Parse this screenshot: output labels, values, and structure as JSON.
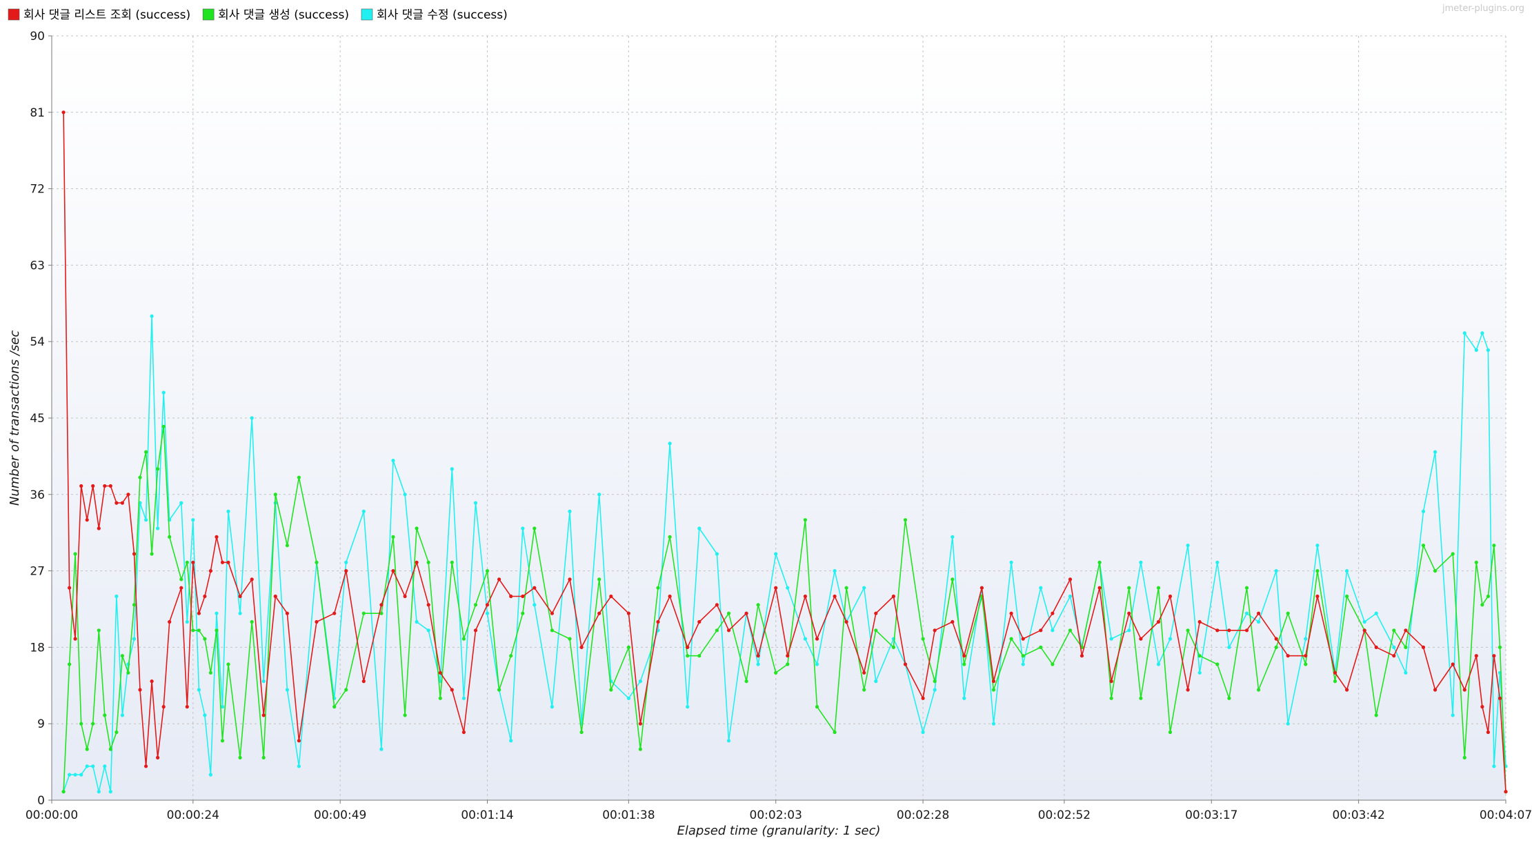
{
  "watermark": "jmeter-plugins.org",
  "colors": {
    "plot_bg_top": "#ffffff",
    "plot_bg_bottom": "#e6ebf5",
    "grid": "#c2c2c2",
    "axis": "#7a7a7a"
  },
  "chart_data": {
    "type": "line",
    "xlabel": "Elapsed time (granularity: 1 sec)",
    "ylabel": "Number of transactions /sec",
    "xlim": [
      0,
      247
    ],
    "ylim": [
      0,
      90
    ],
    "x_ticks": [
      {
        "value": 0,
        "label": "00:00:00"
      },
      {
        "value": 24,
        "label": "00:00:24"
      },
      {
        "value": 49,
        "label": "00:00:49"
      },
      {
        "value": 74,
        "label": "00:01:14"
      },
      {
        "value": 98,
        "label": "00:01:38"
      },
      {
        "value": 123,
        "label": "00:02:03"
      },
      {
        "value": 148,
        "label": "00:02:28"
      },
      {
        "value": 172,
        "label": "00:02:52"
      },
      {
        "value": 197,
        "label": "00:03:17"
      },
      {
        "value": 222,
        "label": "00:03:42"
      },
      {
        "value": 247,
        "label": "00:04:07"
      }
    ],
    "y_ticks": [
      0,
      9,
      18,
      27,
      36,
      45,
      54,
      63,
      72,
      81,
      90
    ],
    "legend_position": "top-left",
    "grid": true,
    "series": [
      {
        "name": "회사 댓글 리스트 조회 (success)",
        "color": "#e21a1a",
        "x": [
          2,
          3,
          4,
          5,
          6,
          7,
          8,
          9,
          10,
          11,
          12,
          13,
          14,
          15,
          16,
          17,
          18,
          19,
          20,
          22,
          23,
          24,
          25,
          26,
          27,
          28,
          29,
          30,
          32,
          34,
          36,
          38,
          40,
          42,
          45,
          48,
          50,
          53,
          56,
          58,
          60,
          62,
          64,
          66,
          68,
          70,
          72,
          74,
          76,
          78,
          80,
          82,
          85,
          88,
          90,
          93,
          95,
          98,
          100,
          103,
          105,
          108,
          110,
          113,
          115,
          118,
          120,
          123,
          125,
          128,
          130,
          133,
          135,
          138,
          140,
          143,
          145,
          148,
          150,
          153,
          155,
          158,
          160,
          163,
          165,
          168,
          170,
          173,
          175,
          178,
          180,
          183,
          185,
          188,
          190,
          193,
          195,
          198,
          200,
          203,
          205,
          208,
          210,
          213,
          215,
          218,
          220,
          223,
          225,
          228,
          230,
          233,
          235,
          238,
          240,
          242,
          243,
          244,
          245,
          246,
          247
        ],
        "values": [
          81,
          25,
          19,
          37,
          33,
          37,
          32,
          37,
          37,
          35,
          35,
          36,
          29,
          13,
          4,
          14,
          5,
          11,
          21,
          25,
          11,
          28,
          22,
          24,
          27,
          31,
          28,
          28,
          24,
          26,
          10,
          24,
          22,
          7,
          21,
          22,
          27,
          14,
          23,
          27,
          24,
          28,
          23,
          15,
          13,
          8,
          20,
          23,
          26,
          24,
          24,
          25,
          22,
          26,
          18,
          22,
          24,
          22,
          9,
          21,
          24,
          18,
          21,
          23,
          20,
          22,
          17,
          25,
          17,
          24,
          19,
          24,
          21,
          15,
          22,
          24,
          16,
          12,
          20,
          21,
          17,
          25,
          14,
          22,
          19,
          20,
          22,
          26,
          17,
          25,
          14,
          22,
          19,
          21,
          24,
          13,
          21,
          20,
          20,
          20,
          22,
          19,
          17,
          17,
          24,
          15,
          13,
          20,
          18,
          17,
          20,
          18,
          13,
          16,
          13,
          17,
          11,
          8,
          17,
          12,
          1
        ]
      },
      {
        "name": "회사 댓글 생성 (success)",
        "color": "#22e322",
        "x": [
          2,
          3,
          4,
          5,
          6,
          7,
          8,
          9,
          10,
          11,
          12,
          13,
          14,
          15,
          16,
          17,
          18,
          19,
          20,
          22,
          23,
          24,
          25,
          26,
          27,
          28,
          29,
          30,
          32,
          34,
          36,
          38,
          40,
          42,
          45,
          48,
          50,
          53,
          56,
          58,
          60,
          62,
          64,
          66,
          68,
          70,
          72,
          74,
          76,
          78,
          80,
          82,
          85,
          88,
          90,
          93,
          95,
          98,
          100,
          103,
          105,
          108,
          110,
          113,
          115,
          118,
          120,
          123,
          125,
          128,
          130,
          133,
          135,
          138,
          140,
          143,
          145,
          148,
          150,
          153,
          155,
          158,
          160,
          163,
          165,
          168,
          170,
          173,
          175,
          178,
          180,
          183,
          185,
          188,
          190,
          193,
          195,
          198,
          200,
          203,
          205,
          208,
          210,
          213,
          215,
          218,
          220,
          223,
          225,
          228,
          230,
          233,
          235,
          238,
          240,
          242,
          243,
          244,
          245,
          246,
          247
        ],
        "values": [
          1,
          16,
          29,
          9,
          6,
          9,
          20,
          10,
          6,
          8,
          17,
          15,
          23,
          38,
          41,
          29,
          39,
          44,
          31,
          26,
          28,
          20,
          20,
          19,
          15,
          20,
          7,
          16,
          5,
          21,
          5,
          36,
          30,
          38,
          28,
          11,
          13,
          22,
          22,
          31,
          10,
          32,
          28,
          12,
          28,
          19,
          23,
          27,
          13,
          17,
          22,
          32,
          20,
          19,
          8,
          26,
          13,
          18,
          6,
          25,
          31,
          17,
          17,
          20,
          22,
          14,
          23,
          15,
          16,
          33,
          11,
          8,
          25,
          13,
          20,
          18,
          33,
          19,
          14,
          26,
          16,
          24,
          13,
          19,
          17,
          18,
          16,
          20,
          18,
          28,
          12,
          25,
          12,
          25,
          8,
          20,
          17,
          16,
          12,
          25,
          13,
          18,
          22,
          16,
          27,
          14,
          24,
          20,
          10,
          20,
          18,
          30,
          27,
          29,
          5,
          28,
          23,
          24,
          30,
          18,
          1
        ]
      },
      {
        "name": "회사 댓글 수정 (success)",
        "color": "#22efef",
        "x": [
          2,
          3,
          4,
          5,
          6,
          7,
          8,
          9,
          10,
          11,
          12,
          13,
          14,
          15,
          16,
          17,
          18,
          19,
          20,
          22,
          23,
          24,
          25,
          26,
          27,
          28,
          29,
          30,
          32,
          34,
          36,
          38,
          40,
          42,
          45,
          48,
          50,
          53,
          56,
          58,
          60,
          62,
          64,
          66,
          68,
          70,
          72,
          74,
          76,
          78,
          80,
          82,
          85,
          88,
          90,
          93,
          95,
          98,
          100,
          103,
          105,
          108,
          110,
          113,
          115,
          118,
          120,
          123,
          125,
          128,
          130,
          133,
          135,
          138,
          140,
          143,
          145,
          148,
          150,
          153,
          155,
          158,
          160,
          163,
          165,
          168,
          170,
          173,
          175,
          178,
          180,
          183,
          185,
          188,
          190,
          193,
          195,
          198,
          200,
          203,
          205,
          208,
          210,
          213,
          215,
          218,
          220,
          223,
          225,
          228,
          230,
          233,
          235,
          238,
          240,
          242,
          243,
          244,
          245,
          246,
          247
        ],
        "values": [
          1,
          3,
          3,
          3,
          4,
          4,
          1,
          4,
          1,
          24,
          10,
          16,
          19,
          35,
          33,
          57,
          32,
          48,
          33,
          35,
          21,
          33,
          13,
          10,
          3,
          22,
          11,
          34,
          22,
          45,
          14,
          35,
          13,
          4,
          28,
          12,
          28,
          34,
          6,
          40,
          36,
          21,
          20,
          14,
          39,
          12,
          35,
          22,
          13,
          7,
          32,
          23,
          11,
          34,
          9,
          36,
          14,
          12,
          14,
          20,
          42,
          11,
          32,
          29,
          7,
          22,
          16,
          29,
          25,
          19,
          16,
          27,
          21,
          25,
          14,
          19,
          16,
          8,
          13,
          31,
          12,
          25,
          9,
          28,
          16,
          25,
          20,
          24,
          18,
          28,
          19,
          20,
          28,
          16,
          19,
          30,
          15,
          28,
          18,
          22,
          21,
          27,
          9,
          19,
          30,
          15,
          27,
          21,
          22,
          18,
          15,
          34,
          41,
          10,
          55,
          53,
          55,
          53,
          4,
          15,
          4
        ]
      }
    ]
  }
}
